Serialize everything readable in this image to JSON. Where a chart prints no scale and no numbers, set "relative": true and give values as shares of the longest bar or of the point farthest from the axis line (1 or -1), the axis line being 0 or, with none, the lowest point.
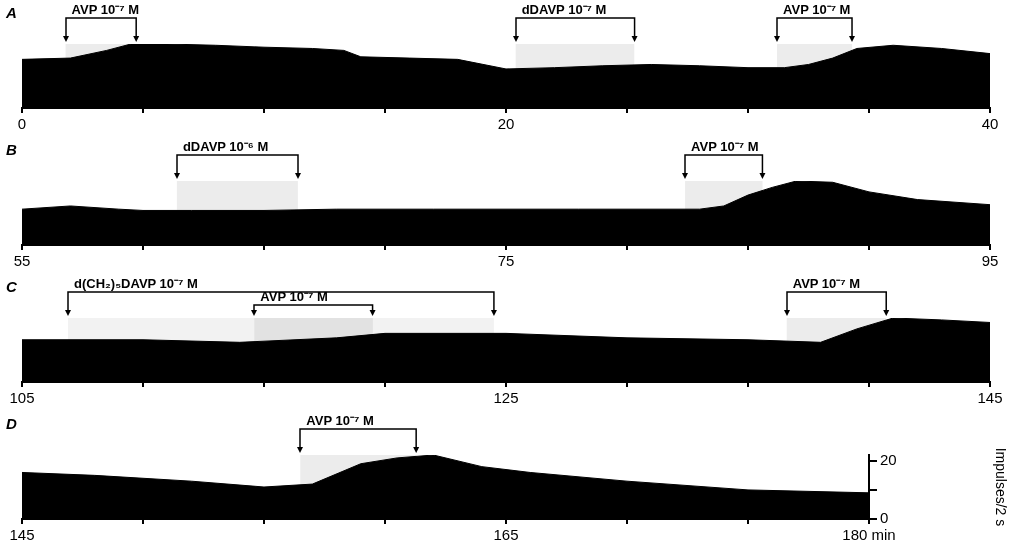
{
  "chart_data": [
    {
      "type": "area",
      "title": "A",
      "relative": true,
      "x": [
        0,
        2,
        3.5,
        4.5,
        6,
        8,
        10,
        12,
        13.3,
        14,
        16,
        18,
        20,
        22,
        24,
        26,
        28,
        30,
        31.5,
        32.5,
        33.5,
        34.5,
        36,
        38,
        40
      ],
      "series": [
        {
          "color": "#000000",
          "values": [
            0.76,
            0.78,
            0.9,
            1,
            1,
            0.98,
            0.95,
            0.93,
            0.9,
            0.8,
            0.78,
            0.76,
            0.61,
            0.63,
            0.66,
            0.68,
            0.66,
            0.63,
            0.63,
            0.68,
            0.78,
            0.93,
            0.98,
            0.93,
            0.85
          ]
        }
      ],
      "xlim": [
        0,
        40
      ],
      "xticks": [
        0,
        {
          "value": 5,
          "label": null
        },
        {
          "value": 10,
          "label": null
        },
        {
          "value": 15,
          "label": null
        },
        20,
        {
          "value": 25,
          "label": null
        },
        {
          "value": 30,
          "label": null
        },
        {
          "value": 35,
          "label": null
        },
        40
      ],
      "tick_labels": "x",
      "grid": false,
      "legend": false,
      "bands": [
        {
          "axis": "x",
          "from": 1.8,
          "to": 4.7,
          "label": "AVP 10⁻⁷ M",
          "color": "#ececec"
        },
        {
          "axis": "x",
          "from": 20.4,
          "to": 25.3,
          "label": "dDAVP 10⁻⁷ M",
          "color": "#ececec"
        },
        {
          "axis": "x",
          "from": 31.2,
          "to": 34.3,
          "label": "AVP 10⁻⁷ M",
          "color": "#ececec"
        }
      ]
    },
    {
      "type": "area",
      "title": "B",
      "relative": true,
      "x": [
        55,
        57,
        59,
        60,
        62,
        65,
        68,
        72,
        75,
        78,
        80,
        83,
        84,
        85,
        86,
        87,
        88.5,
        90,
        92,
        95
      ],
      "series": [
        {
          "color": "#000000",
          "values": [
            0.56,
            0.61,
            0.56,
            0.54,
            0.54,
            0.54,
            0.56,
            0.56,
            0.56,
            0.56,
            0.56,
            0.56,
            0.61,
            0.78,
            0.9,
            1,
            0.98,
            0.83,
            0.71,
            0.63
          ]
        }
      ],
      "xlim": [
        55,
        95
      ],
      "xticks": [
        55,
        {
          "value": 60,
          "label": null
        },
        {
          "value": 65,
          "label": null
        },
        {
          "value": 70,
          "label": null
        },
        75,
        {
          "value": 80,
          "label": null
        },
        {
          "value": 85,
          "label": null
        },
        {
          "value": 90,
          "label": null
        },
        95
      ],
      "tick_labels": "x",
      "grid": false,
      "legend": false,
      "bands": [
        {
          "axis": "x",
          "from": 61.4,
          "to": 66.4,
          "label": "dDAVP 10⁻⁶ M",
          "color": "#ececec"
        },
        {
          "axis": "x",
          "from": 82.4,
          "to": 85.6,
          "label": "AVP 10⁻⁷ M",
          "color": "#ececec"
        }
      ]
    },
    {
      "type": "area",
      "title": "C",
      "relative": true,
      "x": [
        105,
        110,
        114,
        118,
        120,
        125,
        130,
        135,
        138,
        139.5,
        141,
        143,
        145
      ],
      "series": [
        {
          "color": "#000000",
          "values": [
            0.66,
            0.66,
            0.62,
            0.69,
            0.76,
            0.76,
            0.69,
            0.66,
            0.62,
            0.83,
            1,
            0.97,
            0.93
          ]
        }
      ],
      "xlim": [
        105,
        145
      ],
      "xticks": [
        105,
        {
          "value": 110,
          "label": null
        },
        {
          "value": 115,
          "label": null
        },
        {
          "value": 120,
          "label": null
        },
        125,
        {
          "value": 130,
          "label": null
        },
        {
          "value": 135,
          "label": null
        },
        {
          "value": 140,
          "label": null
        },
        145
      ],
      "tick_labels": "x",
      "grid": false,
      "legend": false,
      "bands": [
        {
          "axis": "x",
          "from": 106.9,
          "to": 124.5,
          "label": "d(CH₂)₅DAVP 10⁻⁷ M",
          "color": "#f2f2f2"
        },
        {
          "axis": "x",
          "from": 114.6,
          "to": 119.5,
          "label": "AVP 10⁻⁷ M",
          "color": "#e2e2e2"
        },
        {
          "axis": "x",
          "from": 136.6,
          "to": 140.7,
          "label": "AVP 10⁻⁷ M",
          "color": "#ececec"
        }
      ]
    },
    {
      "type": "area",
      "title": "D",
      "ylabel": "Impulses/2 s",
      "x": [
        145,
        148,
        152,
        155,
        157,
        159,
        160.5,
        162,
        164,
        166,
        170,
        175,
        180
      ],
      "series": [
        {
          "color": "#000000",
          "values": [
            16,
            15,
            13,
            11,
            12,
            19,
            21,
            22,
            18,
            16,
            13,
            10,
            9
          ]
        }
      ],
      "xlim": [
        145,
        180
      ],
      "xticks": [
        145,
        {
          "value": 150,
          "label": null
        },
        {
          "value": 155,
          "label": null
        },
        {
          "value": 160,
          "label": null
        },
        165,
        {
          "value": 170,
          "label": null
        },
        {
          "value": 175,
          "label": null
        },
        {
          "value": 180,
          "label": "180 min"
        }
      ],
      "ylim": [
        0,
        22
      ],
      "yticks": [
        0,
        {
          "value": 10,
          "label": null
        },
        20
      ],
      "grid": false,
      "legend": false,
      "bands": [
        {
          "axis": "x",
          "from": 156.5,
          "to": 161.3,
          "label": "AVP 10⁻⁷ M",
          "color": "#ececec"
        }
      ]
    }
  ]
}
